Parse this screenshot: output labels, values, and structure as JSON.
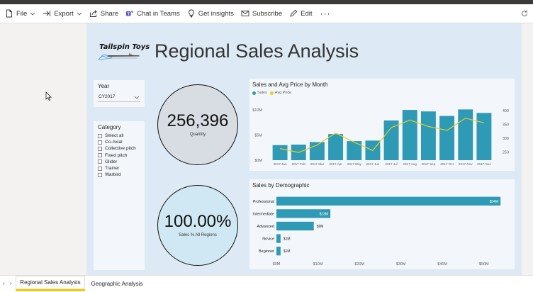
{
  "toolbar": {
    "items": [
      {
        "label": "File",
        "icon": "file-icon",
        "caret": true
      },
      {
        "label": "Export",
        "icon": "export-icon",
        "caret": true
      },
      {
        "label": "Share",
        "icon": "share-icon",
        "caret": false
      },
      {
        "label": "Chat in Teams",
        "icon": "teams-icon",
        "caret": false
      },
      {
        "label": "Get insights",
        "icon": "lightbulb-icon",
        "caret": false
      },
      {
        "label": "Subscribe",
        "icon": "mail-icon",
        "caret": false
      },
      {
        "label": "Edit",
        "icon": "pencil-icon",
        "caret": false
      }
    ],
    "more": "···"
  },
  "report": {
    "logo_text": "Tailspin Toys",
    "title": "Regional Sales Analysis",
    "year_slicer": {
      "title": "Year",
      "selected": "CY2017"
    },
    "category_slicer": {
      "title": "Category",
      "items": [
        "Select all",
        "Co-Axial",
        "Collective pitch",
        "Fixed pitch",
        "Glider",
        "Trainer",
        "Warbird"
      ]
    },
    "kpi_quantity": {
      "value": "256,396",
      "label": "Quantity"
    },
    "kpi_sales_pct": {
      "value": "100.00%",
      "label": "Sales % All Regions"
    }
  },
  "colors": {
    "bar": "#2f9ab5",
    "line": "#e3d023",
    "accent_tab": "#f2c811"
  },
  "chart_data": [
    {
      "type": "bar",
      "title": "Sales and Avg Price by Month",
      "legend": [
        "Sales",
        "Avg Price"
      ],
      "legend_placement": "top-left",
      "categories": [
        "2017 Jan",
        "2017 Feb",
        "2017 Mar",
        "2017 Apr",
        "2017 May",
        "2017 Jun",
        "2017 Jul",
        "2017 Aug",
        "2017 Sep",
        "2017 Oct",
        "2017 Nov",
        "2017 Dec"
      ],
      "series": [
        {
          "name": "Sales",
          "type": "bar",
          "axis": "left",
          "values": [
            3.0,
            3.1,
            3.6,
            5.2,
            3.8,
            3.9,
            7.9,
            10.0,
            9.7,
            8.8,
            10.1,
            9.4
          ]
        },
        {
          "name": "Avg Price",
          "type": "line",
          "axis": "right",
          "values": [
            262,
            248,
            275,
            318,
            285,
            255,
            338,
            365,
            342,
            328,
            372,
            355
          ]
        }
      ],
      "ylim_left": [
        0,
        11
      ],
      "yticks_left": [
        {
          "v": 0,
          "label": "$0M"
        },
        {
          "v": 5,
          "label": "$5M"
        },
        {
          "v": 10,
          "label": "$10M"
        }
      ],
      "ylim_right": [
        220,
        420
      ],
      "yticks_right": [
        250,
        300,
        350,
        400
      ]
    },
    {
      "type": "bar",
      "orientation": "horizontal",
      "title": "Sales by Demographic",
      "categories": [
        "Professional",
        "Intermediate",
        "Advanced",
        "Novice",
        "Beginner"
      ],
      "values": [
        54,
        13,
        9,
        1,
        1
      ],
      "data_labels": [
        "$54M",
        "$13M",
        "$9M",
        "$1M",
        "$1M"
      ],
      "xlim": [
        0,
        55
      ],
      "xticks": [
        {
          "v": 0,
          "label": "$0M"
        },
        {
          "v": 10,
          "label": "$10M"
        },
        {
          "v": 20,
          "label": "$20M"
        },
        {
          "v": 30,
          "label": "$30M"
        },
        {
          "v": 40,
          "label": "$40M"
        },
        {
          "v": 50,
          "label": "$50M"
        }
      ]
    }
  ],
  "tabs": [
    {
      "label": "Regional Sales Analysis",
      "active": true
    },
    {
      "label": "Geographic Analysis",
      "active": false
    }
  ]
}
